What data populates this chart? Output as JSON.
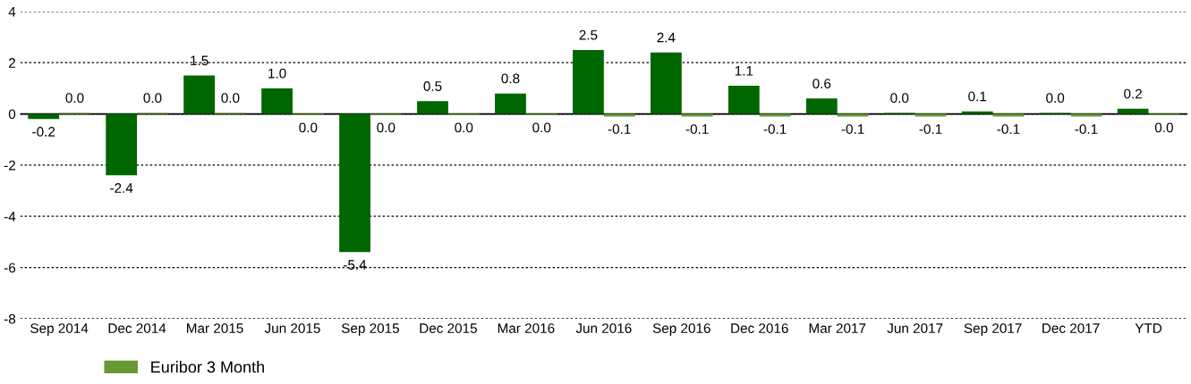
{
  "chart_data": {
    "type": "bar",
    "categories": [
      "Sep 2014",
      "Dec 2014",
      "Mar 2015",
      "Jun 2015",
      "Sep 2015",
      "Dec 2015",
      "Mar 2016",
      "Jun 2016",
      "Sep 2016",
      "Dec 2016",
      "Mar 2017",
      "Jun 2017",
      "Sep 2017",
      "Dec 2017",
      "YTD"
    ],
    "series": [
      {
        "color": "#006600",
        "values": [
          -0.2,
          -2.4,
          1.5,
          1.0,
          -5.4,
          0.5,
          0.8,
          2.5,
          2.4,
          1.1,
          0.6,
          0.04,
          0.1,
          0.04,
          0.2
        ],
        "value_labels": [
          "-0.2",
          "-2.4",
          "1.5",
          "1.0",
          "-5.4",
          "0.5",
          "0.8",
          "2.5",
          "2.4",
          "1.1",
          "0.6",
          "0.0",
          "0.1",
          "0.0",
          "0.2"
        ]
      },
      {
        "name": "Euribor 3 Month",
        "color": "#669933",
        "values": [
          0.04,
          0.04,
          0.04,
          -0.04,
          -0.04,
          -0.04,
          -0.04,
          -0.1,
          -0.1,
          -0.1,
          -0.1,
          -0.1,
          -0.1,
          -0.1,
          -0.04
        ],
        "value_labels": [
          "0.0",
          "0.0",
          "0.0",
          "0.0",
          "0.0",
          "0.0",
          "0.0",
          "-0.1",
          "-0.1",
          "-0.1",
          "-0.1",
          "-0.1",
          "-0.1",
          "-0.1",
          "0.0"
        ]
      }
    ],
    "ylim": [
      -8,
      4
    ],
    "yticks": [
      -8,
      -6,
      -4,
      -2,
      0,
      2,
      4
    ],
    "grid": "y",
    "line_style": "dotted",
    "legend": "bottom left",
    "ref_lines": [
      {
        "axis": "y",
        "value": 0,
        "color": "#000000"
      }
    ]
  }
}
